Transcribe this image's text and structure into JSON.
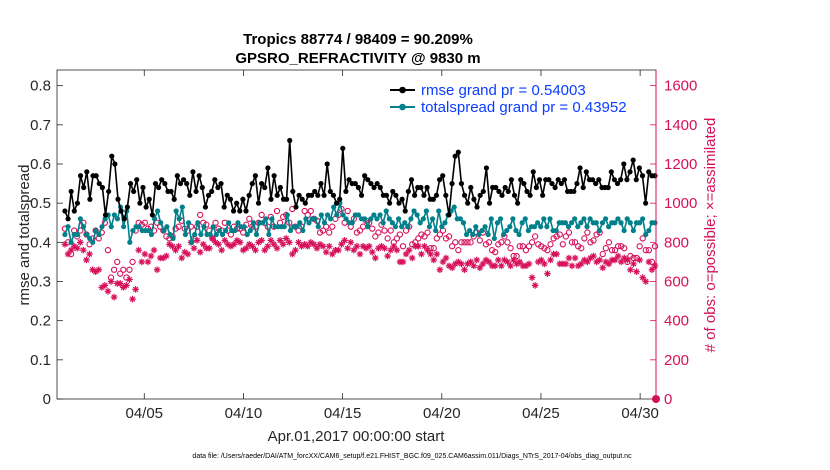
{
  "chart_data": {
    "type": "line",
    "title": "Tropics 88774 / 98409 = 90.209%",
    "subtitle": "GPSRO_REFRACTIVITY @ 9830 m",
    "xlabel": "Apr.01,2017 00:00:00 start",
    "ylabel": "rmse and totalspread",
    "ylabel_right": "# of obs: o=possible; ×=assimilated",
    "footnote": "data file: /Users/raeder/DAI/ATM_forcXX/CAM6_setup/f.e21.FHIST_BGC.f09_025.CAM6assim.011/Diags_NTrS_2017-04/obs_diag_output.nc",
    "xlim": [
      0.6,
      30.8
    ],
    "ylim": [
      0,
      0.84
    ],
    "ylim_right": [
      0,
      1680
    ],
    "x_ticks": [
      {
        "value": 5,
        "label": "04/05"
      },
      {
        "value": 10,
        "label": "04/10"
      },
      {
        "value": 15,
        "label": "04/15"
      },
      {
        "value": 20,
        "label": "04/20"
      },
      {
        "value": 25,
        "label": "04/25"
      },
      {
        "value": 30,
        "label": "04/30"
      }
    ],
    "y_ticks": [
      "0",
      "0.1",
      "0.2",
      "0.3",
      "0.4",
      "0.5",
      "0.6",
      "0.7",
      "0.8"
    ],
    "y_ticks_right": [
      "0",
      "200",
      "400",
      "600",
      "800",
      "1000",
      "1200",
      "1400",
      "1600"
    ],
    "legend": [
      {
        "label": "rmse grand pr = 0.54003",
        "color": "#000000"
      },
      {
        "label": "totalspread grand pr = 0.43952",
        "color": "#00808a"
      }
    ],
    "colors": {
      "rmse": "#000000",
      "spread": "#00808a",
      "obs": "#d6105a",
      "legend_text": "#0a3cff"
    },
    "series": [
      {
        "name": "rmse",
        "axis": "left",
        "values": [
          0.48,
          0.46,
          0.53,
          0.48,
          0.5,
          0.57,
          0.54,
          0.58,
          0.51,
          0.57,
          0.57,
          0.55,
          0.54,
          0.47,
          0.53,
          0.62,
          0.6,
          0.51,
          0.48,
          0.46,
          0.49,
          0.55,
          0.53,
          0.56,
          0.5,
          0.54,
          0.49,
          0.51,
          0.47,
          0.55,
          0.54,
          0.56,
          0.55,
          0.53,
          0.53,
          0.51,
          0.57,
          0.55,
          0.56,
          0.55,
          0.52,
          0.58,
          0.53,
          0.57,
          0.54,
          0.49,
          0.52,
          0.53,
          0.56,
          0.54,
          0.55,
          0.49,
          0.52,
          0.51,
          0.48,
          0.5,
          0.48,
          0.51,
          0.48,
          0.52,
          0.55,
          0.57,
          0.5,
          0.55,
          0.54,
          0.59,
          0.51,
          0.57,
          0.52,
          0.54,
          0.51,
          0.51,
          0.66,
          0.53,
          0.49,
          0.52,
          0.51,
          0.5,
          0.52,
          0.52,
          0.53,
          0.52,
          0.55,
          0.52,
          0.6,
          0.53,
          0.52,
          0.5,
          0.51,
          0.64,
          0.53,
          0.56,
          0.55,
          0.55,
          0.54,
          0.52,
          0.57,
          0.56,
          0.55,
          0.54,
          0.55,
          0.54,
          0.52,
          0.52,
          0.5,
          0.53,
          0.52,
          0.5,
          0.51,
          0.48,
          0.53,
          0.56,
          0.52,
          0.54,
          0.54,
          0.52,
          0.54,
          0.51,
          0.51,
          0.52,
          0.56,
          0.57,
          0.52,
          0.47,
          0.55,
          0.62,
          0.63,
          0.55,
          0.52,
          0.5,
          0.54,
          0.51,
          0.49,
          0.52,
          0.53,
          0.59,
          0.5,
          0.54,
          0.54,
          0.53,
          0.52,
          0.54,
          0.53,
          0.56,
          0.52,
          0.5,
          0.56,
          0.55,
          0.53,
          0.52,
          0.58,
          0.54,
          0.56,
          0.52,
          0.56,
          0.56,
          0.55,
          0.54,
          0.56,
          0.55,
          0.56,
          0.53,
          0.53,
          0.53,
          0.55,
          0.59,
          0.54,
          0.58,
          0.56,
          0.56,
          0.55,
          0.56,
          0.54,
          0.54,
          0.54,
          0.58,
          0.56,
          0.55,
          0.56,
          0.6,
          0.56,
          0.58,
          0.61,
          0.56,
          0.59,
          0.57,
          0.5,
          0.58,
          0.57,
          0.57
        ]
      },
      {
        "name": "totalspread",
        "axis": "left",
        "values": [
          0.42,
          0.44,
          0.4,
          0.42,
          0.42,
          0.46,
          0.44,
          0.42,
          0.41,
          0.4,
          0.43,
          0.42,
          0.44,
          0.46,
          0.47,
          0.44,
          0.47,
          0.46,
          0.49,
          0.44,
          0.48,
          0.4,
          0.43,
          0.44,
          0.44,
          0.43,
          0.43,
          0.43,
          0.42,
          0.46,
          0.48,
          0.45,
          0.43,
          0.44,
          0.42,
          0.41,
          0.48,
          0.46,
          0.49,
          0.42,
          0.45,
          0.4,
          0.42,
          0.45,
          0.42,
          0.44,
          0.42,
          0.42,
          0.44,
          0.42,
          0.43,
          0.42,
          0.43,
          0.45,
          0.43,
          0.43,
          0.45,
          0.44,
          0.44,
          0.42,
          0.43,
          0.45,
          0.42,
          0.45,
          0.45,
          0.46,
          0.42,
          0.46,
          0.44,
          0.44,
          0.44,
          0.44,
          0.47,
          0.43,
          0.44,
          0.44,
          0.45,
          0.43,
          0.46,
          0.45,
          0.46,
          0.46,
          0.44,
          0.47,
          0.45,
          0.47,
          0.46,
          0.49,
          0.47,
          0.5,
          0.47,
          0.46,
          0.45,
          0.45,
          0.47,
          0.47,
          0.46,
          0.46,
          0.44,
          0.46,
          0.47,
          0.46,
          0.47,
          0.45,
          0.48,
          0.46,
          0.45,
          0.44,
          0.46,
          0.44,
          0.45,
          0.44,
          0.46,
          0.48,
          0.47,
          0.45,
          0.46,
          0.48,
          0.44,
          0.46,
          0.43,
          0.48,
          0.44,
          0.45,
          0.47,
          0.48,
          0.49,
          0.46,
          0.46,
          0.45,
          0.42,
          0.43,
          0.42,
          0.44,
          0.42,
          0.43,
          0.44,
          0.42,
          0.46,
          0.41,
          0.45,
          0.46,
          0.42,
          0.43,
          0.44,
          0.46,
          0.43,
          0.42,
          0.45,
          0.46,
          0.43,
          0.44,
          0.44,
          0.45,
          0.44,
          0.46,
          0.44,
          0.46,
          0.43,
          0.43,
          0.45,
          0.45,
          0.45,
          0.44,
          0.45,
          0.46,
          0.44,
          0.45,
          0.46,
          0.44,
          0.46,
          0.45,
          0.45,
          0.43,
          0.45,
          0.46,
          0.44,
          0.45,
          0.45,
          0.46,
          0.45,
          0.43,
          0.46,
          0.45,
          0.43,
          0.45,
          0.45,
          0.46,
          0.42,
          0.43,
          0.45,
          0.45
        ]
      },
      {
        "name": "obs_possible",
        "axis": "right",
        "marker": "circle",
        "values": [
          870,
          800,
          740,
          860,
          830,
          860,
          900,
          840,
          790,
          820,
          860,
          820,
          850,
          900,
          760,
          620,
          660,
          700,
          640,
          660,
          620,
          660,
          700,
          860,
          900,
          890,
          900,
          870,
          880,
          860,
          900,
          880,
          860,
          830,
          820,
          830,
          870,
          880,
          910,
          870,
          860,
          880,
          820,
          880,
          940,
          900,
          890,
          860,
          820,
          900,
          870,
          860,
          900,
          860,
          840,
          880,
          870,
          870,
          850,
          890,
          920,
          880,
          880,
          900,
          940,
          900,
          880,
          930,
          880,
          960,
          900,
          930,
          940,
          900,
          970,
          880,
          860,
          880,
          960,
          940,
          960,
          920,
          910,
          850,
          860,
          880,
          850,
          880,
          920,
          940,
          970,
          900,
          960,
          880,
          920,
          850,
          860,
          880,
          910,
          900,
          870,
          830,
          850,
          890,
          860,
          820,
          860,
          800,
          820,
          840,
          780,
          860,
          880,
          790,
          800,
          820,
          840,
          830,
          850,
          770,
          770,
          820,
          840,
          860,
          820,
          830,
          780,
          800,
          760,
          800,
          800,
          800,
          800,
          830,
          850,
          810,
          850,
          790,
          800,
          760,
          750,
          790,
          800,
          830,
          800,
          770,
          730,
          730,
          780,
          780,
          760,
          780,
          800,
          830,
          790,
          780,
          770,
          760,
          790,
          820,
          830,
          840,
          790,
          830,
          850,
          800,
          800,
          780,
          770,
          820,
          850,
          800,
          810,
          840,
          850,
          740,
          770,
          800,
          760,
          760,
          780,
          780,
          770,
          700,
          730,
          720,
          720,
          780,
          820,
          760,
          760,
          700,
          780
        ]
      },
      {
        "name": "obs_assimilated",
        "axis": "right",
        "marker": "asterisk",
        "values": [
          790,
          740,
          760,
          780,
          770,
          800,
          760,
          710,
          740,
          660,
          650,
          660,
          570,
          580,
          550,
          600,
          520,
          590,
          590,
          570,
          580,
          610,
          510,
          560,
          760,
          700,
          740,
          700,
          730,
          760,
          660,
          720,
          720,
          730,
          790,
          780,
          760,
          780,
          720,
          750,
          740,
          800,
          770,
          810,
          750,
          790,
          770,
          770,
          820,
          800,
          790,
          760,
          810,
          790,
          780,
          790,
          810,
          800,
          760,
          770,
          790,
          780,
          760,
          800,
          810,
          760,
          780,
          810,
          790,
          770,
          810,
          790,
          820,
          800,
          740,
          760,
          800,
          780,
          790,
          780,
          800,
          790,
          770,
          790,
          780,
          750,
          780,
          740,
          760,
          760,
          790,
          810,
          770,
          800,
          760,
          780,
          740,
          780,
          770,
          780,
          750,
          720,
          770,
          780,
          770,
          730,
          760,
          780,
          760,
          700,
          700,
          740,
          760,
          720,
          780,
          780,
          740,
          780,
          760,
          740,
          710,
          740,
          660,
          700,
          720,
          680,
          670,
          690,
          700,
          690,
          660,
          690,
          700,
          680,
          710,
          670,
          690,
          710,
          700,
          680,
          680,
          710,
          680,
          710,
          700,
          680,
          710,
          690,
          700,
          680,
          680,
          690,
          620,
          580,
          700,
          710,
          690,
          640,
          710,
          740,
          740,
          690,
          690,
          690,
          720,
          680,
          720,
          680,
          690,
          710,
          700,
          720,
          730,
          700,
          710,
          670,
          700,
          690,
          710,
          710,
          730,
          700,
          720,
          710,
          660,
          690,
          650,
          710,
          620,
          600,
          700,
          660,
          680
        ]
      }
    ]
  }
}
